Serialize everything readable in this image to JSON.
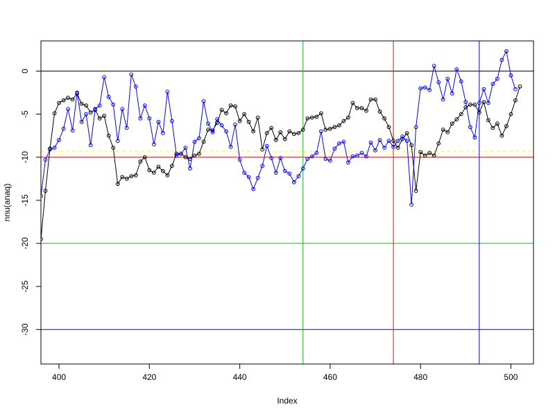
{
  "chart_data": {
    "type": "line",
    "title": "",
    "xlabel": "Index",
    "ylabel": "nnu(anaq)",
    "xlim": [
      396,
      505
    ],
    "ylim": [
      -34,
      3.5
    ],
    "x_ticks": [
      400,
      420,
      440,
      460,
      480,
      500
    ],
    "y_ticks": [
      0,
      -5,
      -10,
      -15,
      -20,
      -25,
      -30
    ],
    "grid": false,
    "legend": "none",
    "series": [
      {
        "color": "#000000",
        "x_start": 396,
        "values": [
          -19.5,
          -13.9,
          -9.0,
          -4.9,
          -3.7,
          -3.4,
          -3.1,
          -3.3,
          -2.6,
          -3.8,
          -4.0,
          -4.8,
          -4.5,
          -5.5,
          -5.2,
          -7.5,
          -8.9,
          -13.1,
          -12.3,
          -12.5,
          -12.2,
          -12.1,
          -10.5,
          -10.0,
          -11.5,
          -11.8,
          -11.1,
          -11.6,
          -12.1,
          -11.0,
          -9.6,
          -9.6,
          -10.0,
          -10.2,
          -9.8,
          -9.6,
          -8.2,
          -6.8,
          -6.9,
          -6.0,
          -4.5,
          -4.9,
          -4.0,
          -4.1,
          -5.8,
          -5.0,
          -5.9,
          -7.0,
          -5.4,
          -9.1,
          -7.2,
          -6.6,
          -8.0,
          -7.1,
          -7.9,
          -7.0,
          -7.3,
          -7.2,
          -6.8,
          -5.5,
          -5.4,
          -5.3,
          -4.9,
          -6.8,
          -6.7,
          -6.5,
          -6.3,
          -5.8,
          -5.4,
          -3.7,
          -4.3,
          -4.3,
          -4.6,
          -3.3,
          -3.3,
          -4.7,
          -5.5,
          -6.5,
          -8.1,
          -8.9,
          -7.9,
          -7.2,
          -8.6,
          -13.9,
          -9.4,
          -9.8,
          -9.5,
          -9.8,
          -8.4,
          -6.8,
          -7.1,
          -6.1,
          -5.6,
          -5.0,
          -4.2,
          -3.9,
          -3.9,
          -4.8,
          -3.6,
          -5.7,
          -6.6,
          -6.1,
          -7.5,
          -6.4,
          -5.0,
          -3.4,
          -1.8
        ]
      },
      {
        "color": "#0000ff",
        "x_start": 396,
        "values": [
          -14.5,
          -10.3,
          -9.1,
          -8.9,
          -8.0,
          -6.7,
          -4.4,
          -6.9,
          -2.5,
          -5.9,
          -5.0,
          -8.6,
          -4.4,
          -4.0,
          -0.7,
          -3.0,
          -3.9,
          -8.1,
          -4.4,
          -6.6,
          -0.4,
          -1.8,
          -5.5,
          -4.0,
          -5.5,
          -8.5,
          -5.9,
          -7.2,
          -2.4,
          -5.8,
          -9.8,
          -9.6,
          -8.9,
          -11.3,
          -8.2,
          -7.8,
          -3.5,
          -6.1,
          -7.1,
          -5.6,
          -6.3,
          -7.0,
          -8.8,
          -6.2,
          -10.3,
          -11.8,
          -12.3,
          -13.7,
          -12.4,
          -11.0,
          -8.7,
          -10.1,
          -11.8,
          -10.1,
          -11.6,
          -11.9,
          -12.9,
          -12.2,
          -11.3,
          -10.2,
          -9.9,
          -9.5,
          -7.0,
          -10.2,
          -10.4,
          -9.0,
          -8.4,
          -8.2,
          -10.6,
          -9.9,
          -9.8,
          -9.5,
          -9.9,
          -8.3,
          -9.2,
          -8.0,
          -8.9,
          -8.1,
          -8.8,
          -8.1,
          -7.6,
          -8.1,
          -15.5,
          -6.5,
          -2.0,
          -1.9,
          -2.2,
          0.6,
          -1.3,
          -3.3,
          -0.9,
          -2.6,
          0.2,
          -1.2,
          -3.6,
          -6.5,
          -7.7,
          -3.7,
          -2.1,
          -3.7,
          -1.5,
          -0.9,
          1.3,
          2.3,
          -0.5,
          -2.1
        ]
      }
    ],
    "reference_lines": [
      {
        "orientation": "horizontal",
        "value": 0,
        "color": "#000000",
        "dashed": false
      },
      {
        "orientation": "horizontal",
        "value": -9.3,
        "color": "#ffff00",
        "dashed": true
      },
      {
        "orientation": "horizontal",
        "value": -10,
        "color": "#ff0000",
        "dashed": false
      },
      {
        "orientation": "horizontal",
        "value": -20,
        "color": "#00c000",
        "dashed": false
      },
      {
        "orientation": "horizontal",
        "value": -30,
        "color": "#0000ff",
        "dashed": false
      },
      {
        "orientation": "vertical",
        "value": 454,
        "color": "#00c000",
        "dashed": false
      },
      {
        "orientation": "vertical",
        "value": 474,
        "color": "#ff0000",
        "dashed": false
      },
      {
        "orientation": "vertical",
        "value": 493,
        "color": "#0000ff",
        "dashed": false
      }
    ]
  }
}
